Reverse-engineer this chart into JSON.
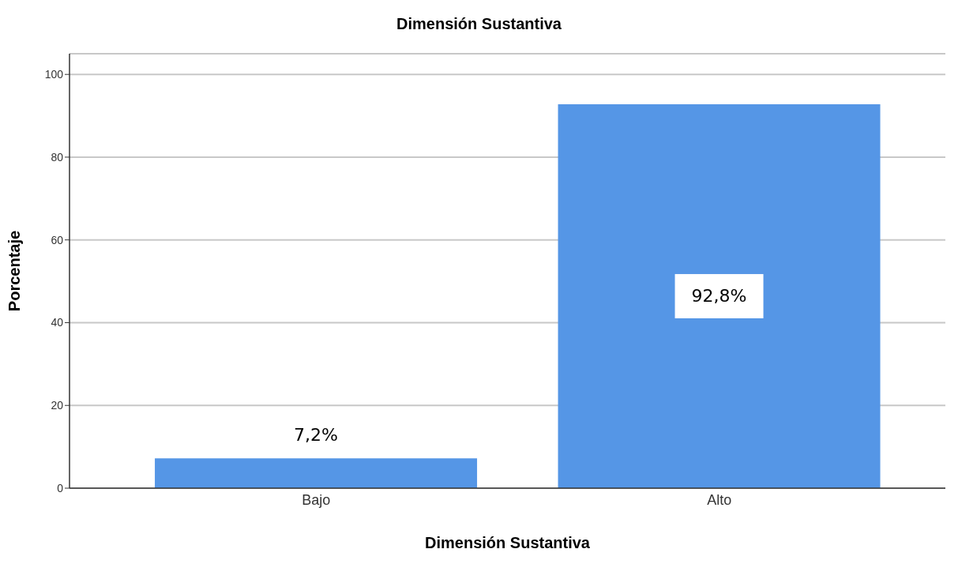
{
  "chart_data": {
    "type": "bar",
    "title": "Dimensión Sustantiva",
    "xlabel": "Dimensión Sustantiva",
    "ylabel": "Porcentaje",
    "categories": [
      "Bajo",
      "Alto"
    ],
    "values": [
      7.2,
      92.8
    ],
    "value_labels": [
      "7,2%",
      "92,8%"
    ],
    "color": "#5596e6",
    "ylim": [
      0,
      105
    ],
    "yticks": [
      0,
      20,
      40,
      60,
      80,
      100
    ],
    "grid": "y"
  }
}
